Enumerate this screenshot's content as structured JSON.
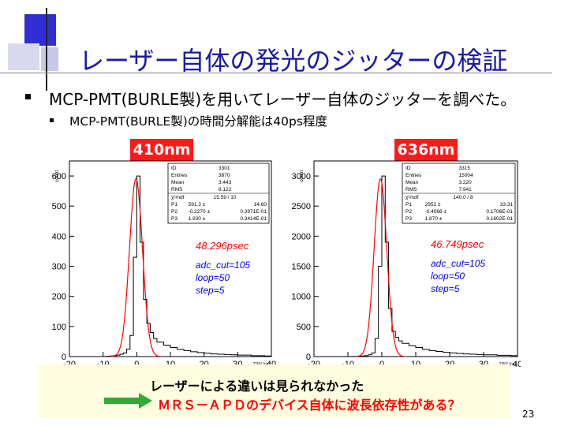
{
  "title": "レーザー自体の発光のジッターの検証",
  "bullet1": "MCP-PMT(BURLE製)を用いてレーザー自体のジッターを調べた。",
  "bullet2": "MCP-PMT(BURLE製)の時間分解能は40ps程度",
  "colors": {
    "title": "#1a1aa6",
    "tag_bg": "#ff1a1a",
    "fit": "#ff0000",
    "annot": "#0000ff",
    "note_bg": "#fffde0",
    "note_red": "#ff0000",
    "arrow": "#33aa33"
  },
  "panels": [
    {
      "tag": "410nm",
      "ylabel": "count",
      "ylim": [
        0,
        650
      ],
      "yticks": [
        "0",
        "100",
        "200",
        "300",
        "400",
        "500",
        "600"
      ],
      "xticks": [
        "-20",
        "-10",
        "0",
        "10",
        "20",
        "30",
        "40"
      ],
      "xlabel": "TDIV (ns)",
      "stats": {
        "rows": [
          [
            "ID",
            "3301"
          ],
          [
            "Entries",
            "3870"
          ],
          [
            "Mean",
            "3.443"
          ],
          [
            "RMS",
            "8.122"
          ]
        ],
        "chi_row": [
          "χ²/ndf",
          "15.59 / 10"
        ],
        "params": [
          [
            "P1",
            "591.3 ±",
            "14.60"
          ],
          [
            "P2",
            "-0.2270 ±",
            "0.3971E-01"
          ],
          [
            "P3",
            "1.930 ±",
            "0.3414E-01"
          ]
        ]
      },
      "sigma": "48.296psec",
      "annot": [
        "adc_cut=105",
        "loop=50",
        "step=5"
      ]
    },
    {
      "tag": "636nm",
      "ylabel": "count",
      "ylim": [
        0,
        3250
      ],
      "yticks": [
        "0",
        "500",
        "1000",
        "1500",
        "2000",
        "2500",
        "3000"
      ],
      "xticks": [
        "-20",
        "-10",
        "0",
        "10",
        "20",
        "30",
        "40"
      ],
      "xlabel": "TDIV (ns)",
      "stats": {
        "rows": [
          [
            "ID",
            "3315"
          ],
          [
            "Entries",
            "15004"
          ],
          [
            "Mean",
            "3.220"
          ],
          [
            "RMS",
            "7.941"
          ]
        ],
        "chi_row": [
          "χ²/ndf",
          "140.0 / 8"
        ],
        "params": [
          [
            "P1",
            "2952 ±",
            "33.31"
          ],
          [
            "P2",
            "-0.4066 ±",
            "0.1706E-01"
          ],
          [
            "P3",
            "1.870 ±",
            "0.1602E-01"
          ]
        ]
      },
      "sigma": "46.749psec",
      "annot": [
        "adc_cut=105",
        "loop=50",
        "step=5"
      ]
    }
  ],
  "chart_data": [
    {
      "type": "bar",
      "title": "410nm",
      "xlabel": "TDIV (ns)",
      "ylabel": "count",
      "xlim": [
        -20,
        40
      ],
      "ylim": [
        0,
        650
      ],
      "series": [
        {
          "x": [
            -10,
            -9,
            -8,
            -7,
            -6,
            -5,
            -4,
            -3,
            -2,
            -1,
            0,
            1,
            2,
            3,
            4,
            5,
            6,
            8,
            10,
            12,
            14,
            16,
            18,
            20,
            22,
            24,
            26,
            28,
            30,
            34,
            38
          ],
          "values": [
            0,
            1,
            2,
            3,
            5,
            8,
            12,
            25,
            70,
            330,
            600,
            380,
            190,
            110,
            80,
            60,
            48,
            38,
            30,
            24,
            20,
            16,
            13,
            11,
            9,
            8,
            7,
            6,
            5,
            3,
            2
          ]
        }
      ]
    },
    {
      "type": "bar",
      "title": "636nm",
      "xlabel": "TDIV (ns)",
      "ylabel": "count",
      "xlim": [
        -20,
        40
      ],
      "ylim": [
        0,
        3250
      ],
      "series": [
        {
          "x": [
            -10,
            -9,
            -8,
            -7,
            -6,
            -5,
            -4,
            -3,
            -2,
            -1,
            0,
            1,
            2,
            3,
            4,
            5,
            6,
            8,
            10,
            12,
            14,
            16,
            18,
            20,
            22,
            24,
            26,
            28,
            30,
            34,
            38
          ],
          "values": [
            0,
            2,
            4,
            6,
            10,
            15,
            30,
            60,
            300,
            1500,
            3000,
            1900,
            800,
            420,
            320,
            260,
            220,
            180,
            150,
            120,
            100,
            85,
            70,
            60,
            52,
            45,
            40,
            34,
            30,
            22,
            15
          ]
        }
      ]
    }
  ],
  "note": {
    "line1": "レーザーによる違いは見られなかった",
    "line2": "ＭＲＳ－ＡＰＤのデバイス自体に波長依存性がある？"
  },
  "page_number": "23"
}
